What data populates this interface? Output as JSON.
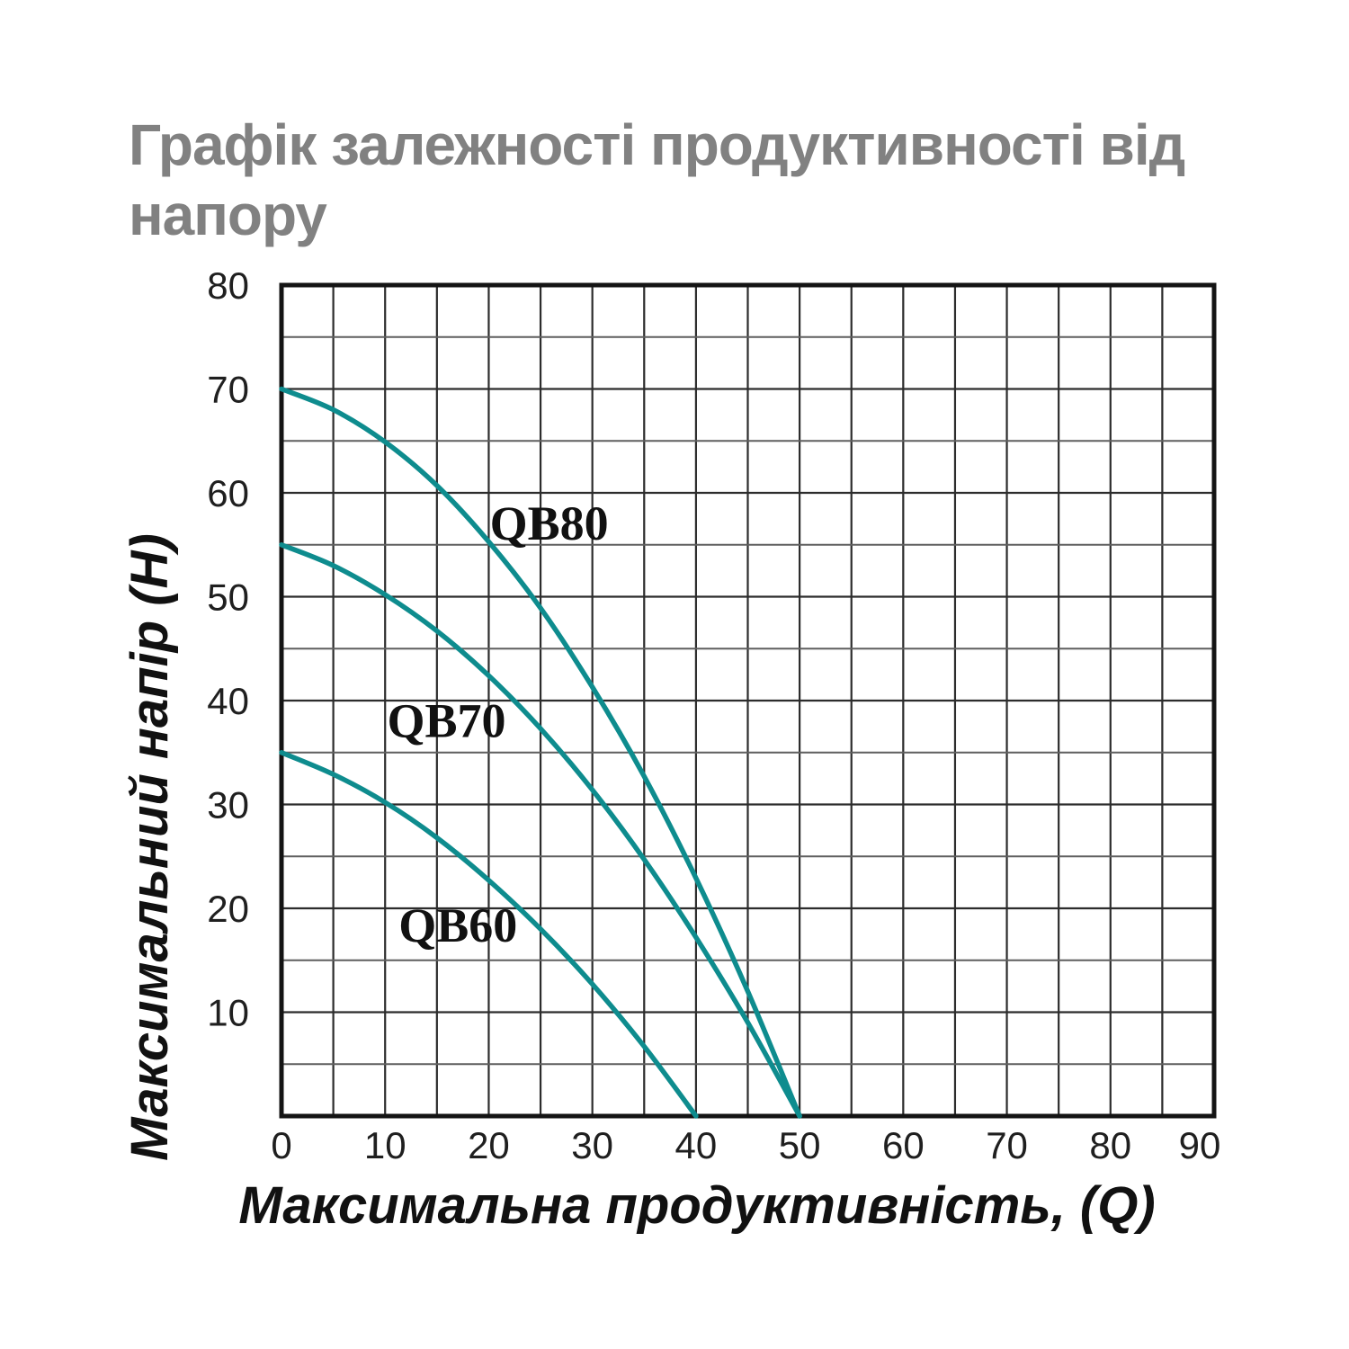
{
  "page": {
    "title_lines": [
      "Графік залежності продуктивності від",
      "напору"
    ],
    "title_color": "#818181"
  },
  "colors": {
    "curve": "#0e8c8e",
    "grid_vertical": "#2c2c2c",
    "grid_horizontal_major": "#2c2c2c",
    "grid_horizontal_minor": "#5f5f5f",
    "border": "#141414",
    "tick_text": "#1f1f1f",
    "axis_title_text": "#111111",
    "series_label_text": "#111111"
  },
  "chart_data": {
    "type": "line",
    "title": "Графік залежності продуктивності від напору",
    "xlabel": "Максимальна продуктивність, (Q)",
    "ylabel": "Максимальний напір (Н)",
    "xlim": [
      0,
      90
    ],
    "ylim": [
      0,
      80
    ],
    "x_ticks": [
      0,
      10,
      20,
      30,
      40,
      50,
      60,
      70,
      80,
      90
    ],
    "y_ticks": [
      10,
      20,
      30,
      40,
      50,
      60,
      70,
      80
    ],
    "grid_step": 5,
    "grid": "on",
    "legend_position": "inline-labels",
    "series": [
      {
        "name": "QB80",
        "label_anchor": {
          "x": 20.1,
          "y": 55.5
        },
        "points": [
          [
            0,
            70
          ],
          [
            5,
            68
          ],
          [
            10,
            64.9
          ],
          [
            15,
            60.7
          ],
          [
            20,
            55.3
          ],
          [
            25,
            48.9
          ],
          [
            30,
            41.3
          ],
          [
            35,
            32.7
          ],
          [
            40,
            22.9
          ],
          [
            45,
            12
          ],
          [
            50,
            0
          ]
        ]
      },
      {
        "name": "QB70",
        "label_anchor": {
          "x": 10.2,
          "y": 36.5
        },
        "points": [
          [
            0,
            55
          ],
          [
            5,
            53
          ],
          [
            10,
            50.2
          ],
          [
            15,
            46.7
          ],
          [
            20,
            42.4
          ],
          [
            25,
            37.3
          ],
          [
            30,
            31.4
          ],
          [
            35,
            24.7
          ],
          [
            40,
            17.2
          ],
          [
            45,
            9
          ],
          [
            50,
            0
          ]
        ]
      },
      {
        "name": "QB60",
        "label_anchor": {
          "x": 11.3,
          "y": 16.8
        },
        "points": [
          [
            0,
            35
          ],
          [
            5,
            32.9
          ],
          [
            10,
            30.2
          ],
          [
            15,
            26.8
          ],
          [
            20,
            22.7
          ],
          [
            25,
            18
          ],
          [
            30,
            12.7
          ],
          [
            35,
            6.7
          ],
          [
            40,
            0
          ]
        ]
      }
    ]
  }
}
